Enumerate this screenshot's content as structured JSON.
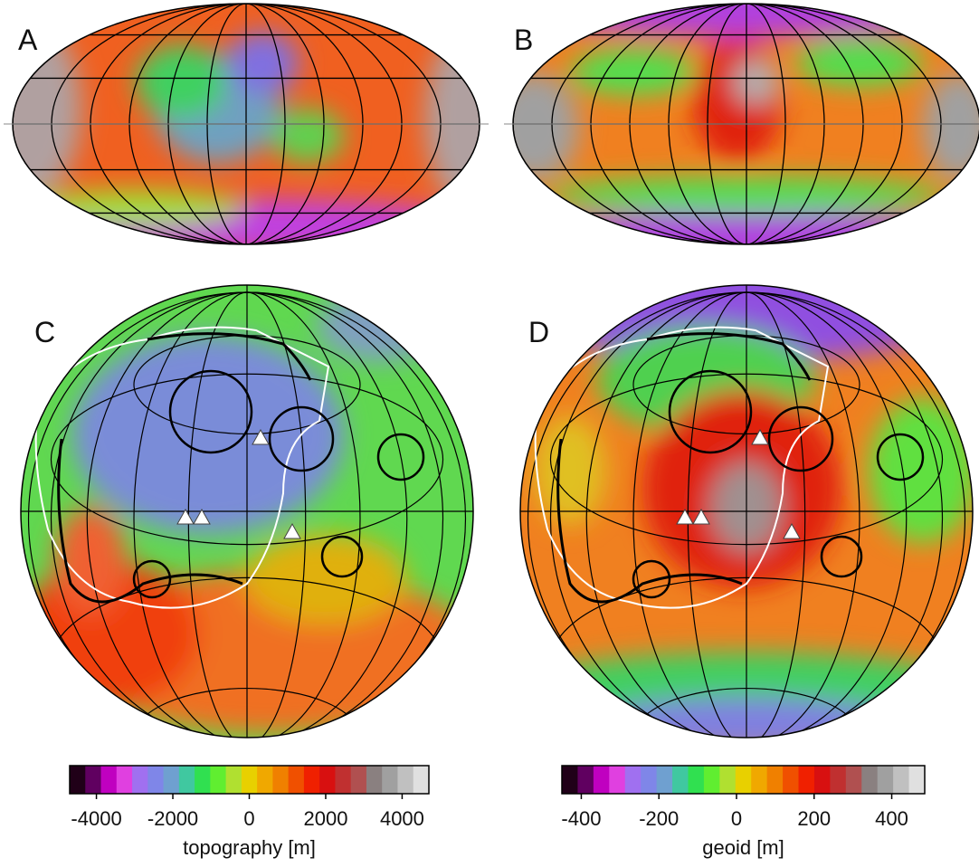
{
  "panels": [
    {
      "label": "A"
    },
    {
      "label": "B"
    },
    {
      "label": "C"
    },
    {
      "label": "D"
    }
  ],
  "colorbars": [
    {
      "label": "topography [m]",
      "lim": [
        -4700,
        4700
      ],
      "ticks": [
        -4000,
        -2000,
        0,
        2000,
        4000
      ],
      "colors": [
        "#200018",
        "#600060",
        "#c000c0",
        "#e040e0",
        "#a070f0",
        "#7f86e8",
        "#6fa0d0",
        "#40c8a0",
        "#30e050",
        "#60ee30",
        "#b0e030",
        "#e8d000",
        "#f0a800",
        "#f08000",
        "#f05000",
        "#f02000",
        "#d81010",
        "#c03030",
        "#b05050",
        "#8a8080",
        "#a0a0a0",
        "#c0c0c0",
        "#e0e0e0"
      ]
    },
    {
      "label": "geoid [m]",
      "lim": [
        -450,
        485
      ],
      "ticks": [
        -400,
        -200,
        0,
        200,
        400
      ],
      "colors": [
        "#200018",
        "#600060",
        "#c000c0",
        "#e040e0",
        "#a070f0",
        "#7f86e8",
        "#6fa0d0",
        "#40c8a0",
        "#30e050",
        "#60ee30",
        "#b0e030",
        "#e8d000",
        "#f0a800",
        "#f08000",
        "#f05000",
        "#f02000",
        "#d81010",
        "#c03030",
        "#b05050",
        "#8a8080",
        "#a0a0a0",
        "#c0c0c0",
        "#e0e0e0"
      ]
    }
  ]
}
